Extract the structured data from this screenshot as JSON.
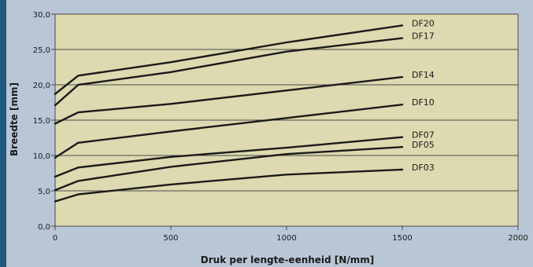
{
  "colors": {
    "page_background": "#1f5a7e",
    "panel_background": "#b9c6d6",
    "plot_background": "#ddd9b0",
    "grid": "#4a4a4a",
    "line": "#1a1a1a"
  },
  "chart_data": {
    "type": "line",
    "title": "",
    "xlabel": "Druk per lengte-eenheid [N/mm]",
    "ylabel": "Breedte [mm]",
    "xlim": [
      0,
      2000
    ],
    "ylim": [
      0,
      30
    ],
    "x_ticks": [
      0,
      500,
      1000,
      1500,
      2000
    ],
    "y_ticks": [
      0,
      5,
      10,
      15,
      20,
      25,
      30
    ],
    "x_tick_labels": [
      "0",
      "500",
      "1000",
      "1500",
      "2000"
    ],
    "y_tick_labels": [
      "0,0",
      "5,0",
      "10,0",
      "15,0",
      "20,0",
      "25,0",
      "30,0"
    ],
    "grid": "horizontal",
    "legend": "labels at line ends",
    "x": [
      0,
      100,
      500,
      1000,
      1500
    ],
    "series": [
      {
        "name": "DF20",
        "values": [
          18.7,
          21.3,
          23.2,
          26.0,
          28.4
        ]
      },
      {
        "name": "DF17",
        "values": [
          17.1,
          20.0,
          21.8,
          24.7,
          26.6
        ]
      },
      {
        "name": "DF14",
        "values": [
          14.5,
          16.1,
          17.3,
          19.2,
          21.1
        ]
      },
      {
        "name": "DF10",
        "values": [
          9.7,
          11.8,
          13.4,
          15.3,
          17.2
        ]
      },
      {
        "name": "DF07",
        "values": [
          7.0,
          8.3,
          9.8,
          11.1,
          12.6
        ]
      },
      {
        "name": "DF05",
        "values": [
          5.1,
          6.4,
          8.4,
          10.2,
          11.2
        ]
      },
      {
        "name": "DF03",
        "values": [
          3.5,
          4.5,
          5.9,
          7.3,
          8.0
        ]
      }
    ]
  }
}
